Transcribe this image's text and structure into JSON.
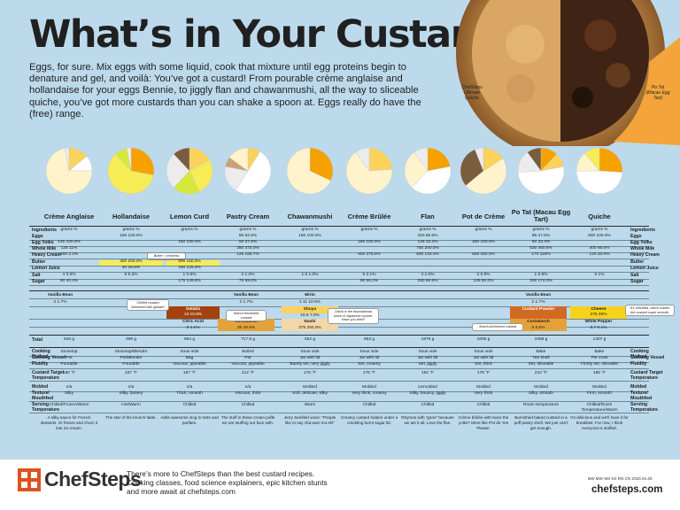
{
  "title": "What’s in Your Custard?",
  "intro": "Eggs, for sure. Mix eggs with some liquid, cook that mixture until egg proteins begin to denature and gel, and voilà: You’ve got a custard! From pourable crème anglaise and hollandaise for your eggs Bennie, to jiggly flan and chawanmushi, all the way to sliceable quiche, you’ve got more custards than you can shake a spoon at. Eggs really do have the (free) range.",
  "hero": {
    "left_caption": "ChefSteps Ultimate Quiche",
    "right_caption": "Po Tat (Macau Egg Tart)"
  },
  "colors": {
    "background": "#bcdaec",
    "eggs": "#f5a201",
    "egg_yolks": "#fbd35a",
    "whole_milk": "#ffffff",
    "heavy_cream": "#fff3cc",
    "butter": "#f6ec55",
    "lemon_juice": "#d8e83a",
    "sugar": "#ececec",
    "other": "#7a5c3e"
  },
  "pies": [
    {
      "name": "creme-anglaise",
      "slices": [
        {
          "value": 14,
          "color": "#fbd35a"
        },
        {
          "value": 11,
          "color": "#ffffff"
        },
        {
          "value": 72,
          "color": "#fff3cc"
        },
        {
          "value": 3,
          "color": "#ececec"
        }
      ]
    },
    {
      "name": "hollandaise",
      "slices": [
        {
          "value": 28,
          "color": "#f5a201"
        },
        {
          "value": 60,
          "color": "#f6ec55"
        },
        {
          "value": 9,
          "color": "#d8e83a"
        },
        {
          "value": 3,
          "color": "#ececec"
        }
      ]
    },
    {
      "name": "lemon-curd",
      "slices": [
        {
          "value": 17,
          "color": "#fbd35a"
        },
        {
          "value": 26,
          "color": "#f6ec55"
        },
        {
          "value": 19,
          "color": "#d8e83a"
        },
        {
          "value": 26,
          "color": "#ececec"
        },
        {
          "value": 12,
          "color": "#7a5c3e"
        }
      ]
    },
    {
      "name": "pastry-cream",
      "slices": [
        {
          "value": 9,
          "color": "#fbd35a"
        },
        {
          "value": 50,
          "color": "#ffffff"
        },
        {
          "value": 19,
          "color": "#ececec"
        },
        {
          "value": 7,
          "color": "#c9a27a"
        },
        {
          "value": 15,
          "color": "#fff3cc"
        }
      ]
    },
    {
      "name": "chawanmushi",
      "slices": [
        {
          "value": 32,
          "color": "#f5a201"
        },
        {
          "value": 68,
          "color": "#fff3cc"
        }
      ]
    },
    {
      "name": "creme-brulee",
      "slices": [
        {
          "value": 24,
          "color": "#fbd35a"
        },
        {
          "value": 66,
          "color": "#fff3cc"
        },
        {
          "value": 10,
          "color": "#ececec"
        }
      ]
    },
    {
      "name": "flan",
      "slices": [
        {
          "value": 22,
          "color": "#f5a201"
        },
        {
          "value": 40,
          "color": "#ffffff"
        },
        {
          "value": 28,
          "color": "#fff3cc"
        },
        {
          "value": 10,
          "color": "#ececec"
        }
      ]
    },
    {
      "name": "pot-de-creme",
      "slices": [
        {
          "value": 16,
          "color": "#fbd35a"
        },
        {
          "value": 48,
          "color": "#fff3cc"
        },
        {
          "value": 30,
          "color": "#7a5c3e"
        },
        {
          "value": 6,
          "color": "#ececec"
        }
      ]
    },
    {
      "name": "po-tat",
      "slices": [
        {
          "value": 12,
          "color": "#f5a201"
        },
        {
          "value": 10,
          "color": "#fbd35a"
        },
        {
          "value": 52,
          "color": "#ffffff"
        },
        {
          "value": 16,
          "color": "#ececec"
        },
        {
          "value": 10,
          "color": "#7a5c3e"
        }
      ]
    },
    {
      "name": "quiche",
      "slices": [
        {
          "value": 26,
          "color": "#f5a201"
        },
        {
          "value": 49,
          "color": "#ffffff"
        },
        {
          "value": 14,
          "color": "#fff3cc"
        },
        {
          "value": 11,
          "color": "#f6ec55"
        }
      ]
    }
  ],
  "columns": [
    "Crème Anglaise",
    "Hollandaise",
    "Lemon Curd",
    "Pastry Cream",
    "Chawanmushi",
    "Crème Brûlée",
    "Flan",
    "Pot de Crème",
    "Po Tat (Macau Egg Tart)",
    "Quiche"
  ],
  "row_labels": [
    "Ingredients",
    "Eggs",
    "Egg Yolks",
    "Whole Milk",
    "Heavy Cream",
    "Butter",
    "Lemon Juice",
    "Salt",
    "Sugar"
  ],
  "units": [
    "grams  %",
    "grams  %",
    "grams  %",
    "grams  %",
    "grams  %",
    "grams  %",
    "grams  %",
    "grams  %",
    "grams  %",
    "grams  %"
  ],
  "ingredients": [
    [
      "",
      "145  100.0%",
      "125  11%",
      "250  2.2%",
      "",
      "",
      "4  3.3%",
      "50  40.4%"
    ],
    [
      "150  100.0%",
      "",
      "",
      "",
      "300  200.0%",
      "40  26.6%",
      "8  5.3%",
      ""
    ],
    [
      "",
      "150  100.0%",
      "",
      "",
      "200  160.0%",
      "150  125.0%",
      "1  0.8%",
      "175  145.8%"
    ],
    [
      "50  62.5%",
      "50  37.5%",
      "350  475.0%",
      "125  166.7%",
      "",
      "",
      "2  1.2%",
      "75  99.0%"
    ],
    [
      "150  100.0%",
      "",
      "",
      "",
      "",
      "",
      "1.5  1.0%",
      ""
    ],
    [
      "",
      "160  100.0%",
      "",
      "600  375.0%",
      "",
      "",
      "5  3.1%",
      "90  56.2%"
    ],
    [
      "250  66.6%",
      "125  33.3%",
      "750  200.0%",
      "500  133.3%",
      "",
      "",
      "4  1.0%",
      "250  66.6%"
    ],
    [
      "",
      "250  100.0%",
      "",
      "625  250.0%",
      "",
      "",
      "2  0.8%",
      "125  50.0%"
    ],
    [
      "85  47.6%",
      "60  33.3%",
      "530  460.6%",
      "170  115%",
      "",
      "",
      "1  0.9%",
      "200  174.0%"
    ],
    [
      "600  100.0%",
      "",
      "400  66.6%",
      "120  20.0%",
      "",
      "",
      "6  1%",
      ""
    ]
  ],
  "extras": {
    "vanilla_label": "Vanilla Bean",
    "vanilla_value": "2  1.7%",
    "mirin_label": "Mirin",
    "mirin_value": "1  11  10.5%",
    "gelatin_label": "Gelatin",
    "gelatin_value": "13  10.8%",
    "citric_label": "Citric Acid",
    "citric_value": "3  4.1%",
    "shoyu_label": "Shoyu",
    "shoyu_value": "10.5  7.0%",
    "cornstarch_label": "Cornstarch",
    "cornstarch_value": "35  49.8%",
    "dashi_label": "Dashi",
    "dashi_value": "375  250.0%",
    "custard_powder_label": "Custard Powder",
    "custard_powder_value": "",
    "cornstarch2_value": "6  6.6%",
    "cheese_label": "Cheese",
    "cheese_value": "275  45%",
    "white_pepper_label": "White Pepper",
    "white_pepper_value": "0.7  0.1%"
  },
  "notes": {
    "chilled": "Chilled custard thickened with gelatin!",
    "butter": "Butter = richness",
    "starch": "Starch-thickened custard",
    "dashi": "Dashi is the foundational stock of Japanese cuisine. Have you tried?",
    "starch2": "Starch-thickened custard",
    "velveeta": "It’s Velveeta, which makes the custard super smooth."
  },
  "totals_label": "Total",
  "totals": [
    "546 g",
    "498 g",
    "664 g",
    "717.5 g",
    "552 g",
    "653 g",
    "1879 g",
    "1005 g",
    "1058 g",
    "1407 g"
  ],
  "props_labels": [
    "Cooking Method",
    "Cooking Vessel",
    "Fluidity",
    "Custard Target Temperature",
    "Molded",
    "Texture/ Mouthfeel",
    "Serving Temperature"
  ],
  "props": [
    [
      "Stovetop",
      "Pot",
      "Pourable",
      "180 °F",
      "n/a",
      "Silky",
      "Chilled/Frozen/Warm"
    ],
    [
      "Stovetop/Blender",
      "Pot/Blender",
      "Pourable",
      "167 °F",
      "n/a",
      "Silky, buttery",
      "Hot/Warm"
    ],
    [
      "Sous vide",
      "Bag",
      "Viscous, pipeable",
      "167 °F",
      "n/a",
      "Thick, smooth",
      "Chilled"
    ],
    [
      "Boiled",
      "Pot",
      "Viscous, pipeable",
      "212 °F",
      "n/a",
      "Viscous, thick",
      "Chilled"
    ],
    [
      "Sous vide",
      "Jar with lid",
      "Barely set, very jiggly",
      "176 °F",
      "Molded",
      "Soft, delicate, silky",
      "Warm"
    ],
    [
      "Sous vide",
      "Jar with lid",
      "Set, creamy",
      "176 °F",
      "Molded",
      "Very thick, creamy",
      "Chilled"
    ],
    [
      "Sous vide",
      "Jar with lid",
      "Set, jiggly",
      "194 °F",
      "Unmolded",
      "Silky, bouncy, jiggly",
      "Chilled"
    ],
    [
      "Sous vide",
      "Jar with lid",
      "Set, thick",
      "176 °F",
      "Molded",
      "Very thick",
      "Chilled"
    ],
    [
      "Bake",
      "Tart shell",
      "Set, sliceable",
      "212 °F",
      "Molded",
      "Silky, smooth",
      "Room temperature"
    ],
    [
      "Bake",
      "Pie crust",
      "Firmly set, sliceable",
      "185 °F",
      "Molded",
      "Firm, smooth",
      "Chilled/Room Temperature/Warm"
    ]
  ],
  "descriptions": [
    "A silky sauce for French desserts. Or freeze and churn it into ice cream.",
    "The star of the brunch table.",
    "Adds awesome zing to tarts and parfaits.",
    "The stuff in these cream puffs we are stuffing our face with.",
    "Jerry Seinfeld voice: “People like to say cha-wan-mu-shi”",
    "Creamy custard hidden under a crackling burnt sugar lid.",
    "Rhymes with “gone” because we ate it all. Love the flan.",
    "Crème brûlée with twice the yolks? More like Pot de Yes Please.",
    "Burnished baked custard in a puff pastry shell. We just can’t get enough.",
    "It’s delicious and we’ll have it for breakfast. For now, I think everyone is stuffed."
  ],
  "footer": {
    "logo": "ChefSteps",
    "line1": "There’s more to ChefSteps than the best custard recipes.",
    "line2": "Cooking classes, food science explainers, epic kitchen stunts",
    "line3": "and more await at chefsteps.com",
    "code": "BW MW SM SS RN CN 2023.04.25",
    "url": "chefsteps.com"
  }
}
